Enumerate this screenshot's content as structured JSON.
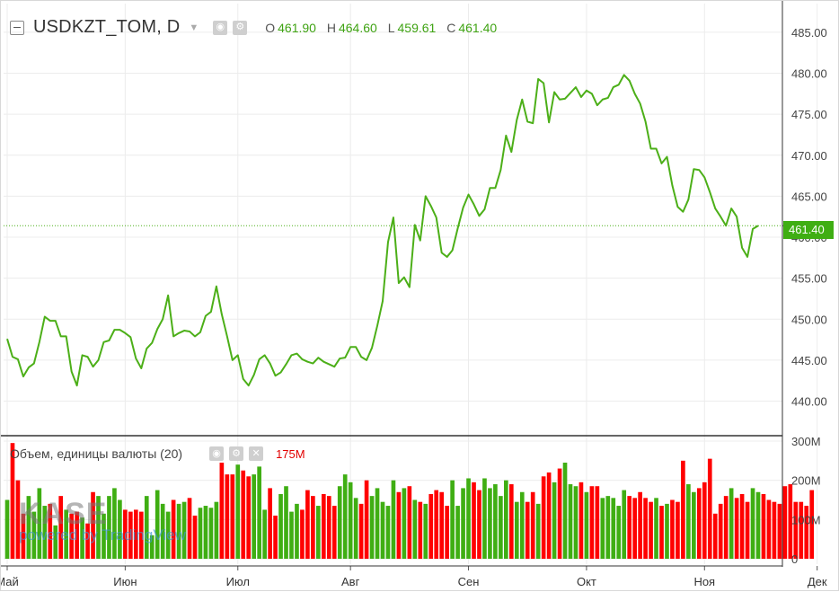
{
  "legend": {
    "symbol": "USDKZT_TOM, D",
    "o_label": "O",
    "o": "461.90",
    "h_label": "H",
    "h": "464.60",
    "l_label": "L",
    "l": "459.61",
    "c_label": "C",
    "c": "461.40"
  },
  "volume_legend": {
    "title": "Объем, единицы валюты (20)",
    "value": "175M"
  },
  "last_price_badge": "461.40",
  "watermark": {
    "logo": "KASE",
    "powered": "powered by TradingView"
  },
  "colors": {
    "line": "#4caf18",
    "up": "#3fae13",
    "down": "#ff0000",
    "grid": "#ececec",
    "axis": "#333333"
  },
  "icons": [
    "collapse-icon",
    "dropdown-icon",
    "eye-icon",
    "gear-icon",
    "close-icon"
  ],
  "chart_data": [
    {
      "type": "line",
      "title": "USDKZT_TOM, D",
      "y_ticks": [
        "440.00",
        "445.00",
        "450.00",
        "455.00",
        "460.00",
        "465.00",
        "470.00",
        "475.00",
        "480.00",
        "485.00"
      ],
      "ylim": [
        436.0,
        488.5
      ],
      "x_ticks": [
        "Май",
        "Июн",
        "Июл",
        "Авг",
        "Сен",
        "Окт",
        "Ноя",
        "Дек"
      ],
      "x_tick_index": [
        0,
        22,
        43,
        64,
        86,
        108,
        130,
        151
      ],
      "last_value": 461.4,
      "values": [
        447.6,
        445.4,
        445.1,
        443.0,
        444.1,
        444.6,
        447.2,
        450.3,
        449.8,
        449.8,
        447.9,
        447.9,
        443.6,
        441.9,
        445.6,
        445.4,
        444.2,
        445.0,
        447.2,
        447.4,
        448.7,
        448.7,
        448.3,
        447.8,
        445.2,
        444.0,
        446.4,
        447.1,
        448.8,
        450.0,
        452.9,
        447.9,
        448.3,
        448.6,
        448.5,
        447.9,
        448.4,
        450.4,
        450.9,
        454.0,
        450.6,
        447.9,
        445.0,
        445.6,
        442.7,
        441.9,
        443.2,
        445.1,
        445.6,
        444.6,
        443.1,
        443.5,
        444.5,
        445.6,
        445.8,
        445.1,
        444.8,
        444.6,
        445.3,
        444.8,
        444.5,
        444.2,
        445.2,
        445.3,
        446.6,
        446.6,
        445.4,
        445.0,
        446.5,
        449.2,
        452.2,
        459.4,
        462.4,
        454.4,
        455.1,
        453.9,
        461.5,
        459.6,
        465.0,
        463.8,
        462.4,
        458.1,
        457.6,
        458.4,
        461.1,
        463.6,
        465.2,
        464.0,
        462.6,
        463.4,
        466.0,
        466.0,
        468.2,
        472.4,
        470.4,
        474.3,
        476.8,
        474.1,
        473.9,
        479.3,
        478.8,
        474.0,
        477.7,
        476.8,
        476.9,
        477.6,
        478.3,
        477.1,
        477.9,
        477.5,
        476.1,
        476.8,
        477.0,
        478.3,
        478.6,
        479.8,
        479.1,
        477.5,
        476.3,
        474.1,
        470.8,
        470.8,
        469.0,
        469.8,
        466.3,
        463.7,
        463.1,
        464.6,
        468.3,
        468.2,
        467.3,
        465.5,
        463.5,
        462.5,
        461.4,
        463.5,
        462.5,
        458.7,
        457.6,
        461.0,
        461.4
      ]
    },
    {
      "type": "bar",
      "title": "Объем, единицы валюты (20)",
      "y_ticks": [
        "0",
        "100M",
        "200M",
        "300M"
      ],
      "ylim": [
        0,
        300
      ],
      "unit": "M",
      "last_value": 175,
      "values": [
        150,
        295,
        200,
        115,
        160,
        120,
        180,
        135,
        140,
        85,
        160,
        125,
        115,
        120,
        105,
        90,
        170,
        160,
        115,
        160,
        180,
        150,
        125,
        120,
        125,
        120,
        160,
        60,
        175,
        140,
        120,
        150,
        140,
        145,
        155,
        110,
        130,
        135,
        130,
        145,
        245,
        215,
        215,
        240,
        225,
        210,
        215,
        235,
        125,
        180,
        110,
        165,
        185,
        120,
        140,
        125,
        175,
        160,
        135,
        165,
        160,
        135,
        185,
        215,
        195,
        155,
        140,
        200,
        160,
        180,
        145,
        135,
        200,
        170,
        180,
        185,
        150,
        145,
        140,
        165,
        175,
        170,
        135,
        200,
        135,
        180,
        205,
        195,
        175,
        205,
        180,
        190,
        160,
        200,
        190,
        145,
        170,
        145,
        170,
        140,
        210,
        220,
        195,
        230,
        245,
        190,
        185,
        195,
        170,
        185,
        185,
        155,
        160,
        155,
        135,
        175,
        160,
        155,
        170,
        155,
        145,
        155,
        135,
        140,
        150,
        145,
        250,
        190,
        170,
        180,
        195,
        255,
        115,
        140,
        160,
        180,
        155,
        165,
        145,
        180,
        170,
        165,
        150,
        145,
        140,
        185,
        190,
        145,
        145,
        135,
        175
      ]
    }
  ]
}
